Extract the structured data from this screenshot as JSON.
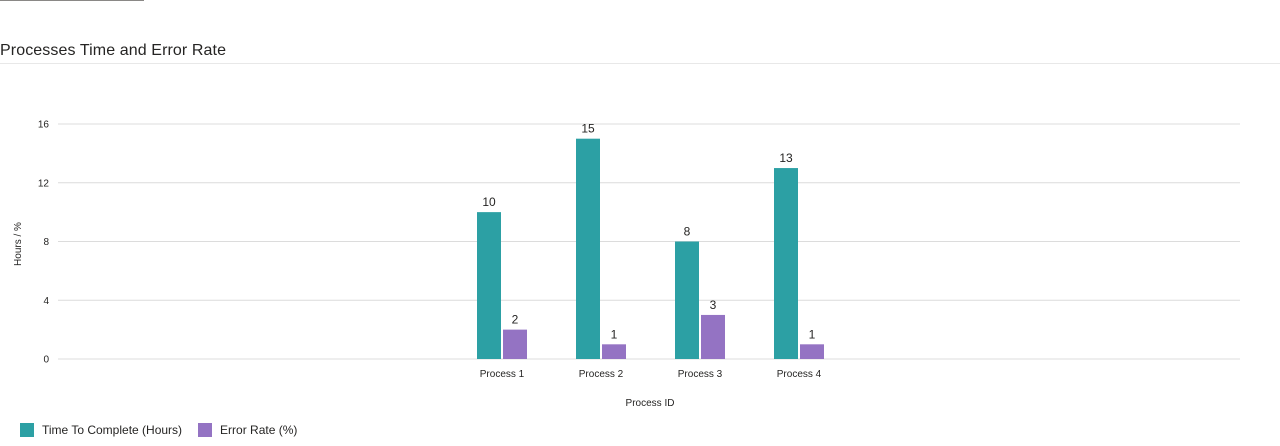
{
  "title": "Processes Time and Error Rate",
  "colors": {
    "series1": "#2ca0a4",
    "series2": "#9473c3"
  },
  "chart_data": {
    "type": "bar",
    "categories": [
      "Process 1",
      "Process 2",
      "Process 3",
      "Process 4"
    ],
    "series": [
      {
        "name": "Time To Complete (Hours)",
        "values": [
          10,
          15,
          8,
          13
        ]
      },
      {
        "name": "Error Rate (%)",
        "values": [
          2,
          1,
          3,
          1
        ]
      }
    ],
    "xlabel": "Process ID",
    "ylabel": "Hours / %",
    "ylim": [
      0,
      16
    ],
    "yticks": [
      0,
      4,
      8,
      12,
      16
    ],
    "grid": true,
    "legend_position": "bottom-left"
  }
}
